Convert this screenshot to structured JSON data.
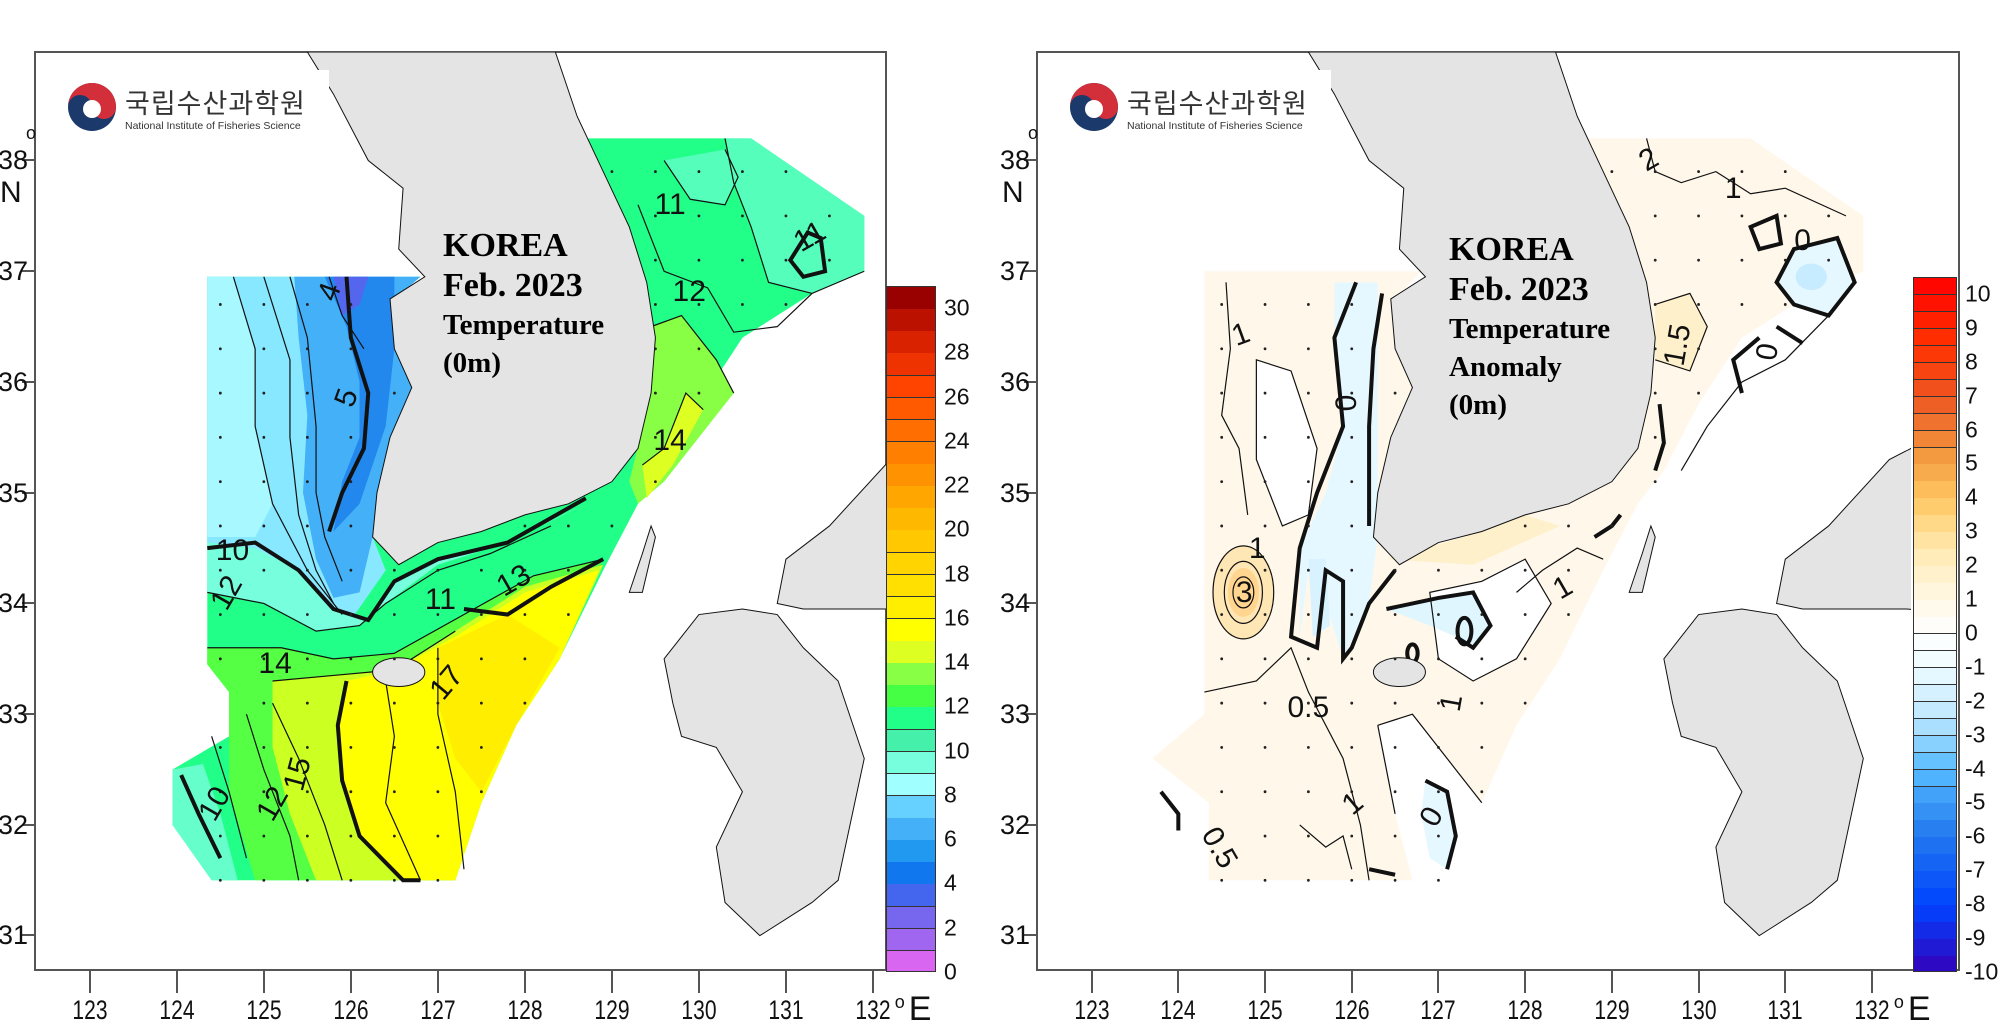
{
  "logo": {
    "korean_name": "국립수산과학원",
    "english_name": "National Institute of Fisheries Science"
  },
  "axes": {
    "lon_ticks": [
      "123",
      "124",
      "125",
      "126",
      "127",
      "128",
      "129",
      "130",
      "131",
      "132"
    ],
    "lat_ticks": [
      "31",
      "32",
      "33",
      "34",
      "35",
      "36",
      "37",
      "38"
    ],
    "degree_symbol": "o",
    "lon_unit": "E",
    "lat_unit": "N"
  },
  "panels": [
    {
      "title_lines": [
        "KOREA",
        "Feb. 2023",
        "Temperature",
        "(0m)"
      ],
      "contour_labels": [
        "4",
        "5",
        "10",
        "12",
        "14",
        "15",
        "17",
        "10",
        "12",
        "11",
        "13",
        "11",
        "11",
        "12",
        "14"
      ],
      "colorbar": {
        "labels": [
          "0",
          "2",
          "4",
          "6",
          "8",
          "10",
          "12",
          "14",
          "16",
          "18",
          "20",
          "22",
          "24",
          "26",
          "28",
          "30"
        ],
        "min": 0,
        "max": 31,
        "colors": [
          "#d966f0",
          "#a066f0",
          "#7766ee",
          "#4466ee",
          "#1177ee",
          "#2299f0",
          "#44b0f8",
          "#66d0ff",
          "#a0ffff",
          "#77ffdd",
          "#44f0aa",
          "#22ff88",
          "#44ff44",
          "#88ff44",
          "#ddff22",
          "#ffff00",
          "#ffee00",
          "#ffe000",
          "#ffd400",
          "#ffc800",
          "#ffb800",
          "#ffa600",
          "#ff9200",
          "#ff8000",
          "#ff6e00",
          "#ff5a00",
          "#ff4400",
          "#ee3300",
          "#d82200",
          "#bb1100",
          "#990000"
        ]
      }
    },
    {
      "title_lines": [
        "KOREA",
        "Feb. 2023",
        "Temperature",
        "Anomaly",
        "(0m)"
      ],
      "contour_labels": [
        "2",
        "1",
        "0",
        "1.5",
        "0",
        "1",
        "0",
        "1",
        "3",
        "0.5",
        "0.5",
        "1",
        "0",
        "1",
        "1"
      ],
      "colorbar": {
        "labels": [
          "-10",
          "-9",
          "-8",
          "-7",
          "-6",
          "-5",
          "-4",
          "-3",
          "-2",
          "-1",
          "0",
          "1",
          "2",
          "3",
          "4",
          "5",
          "6",
          "7",
          "8",
          "9",
          "10"
        ],
        "min": -10,
        "max": 10.5,
        "step": 0.5,
        "anchor_values": [
          -10,
          -8,
          -6,
          -4,
          -2.5,
          -1,
          0,
          1,
          2.5,
          4,
          5.5,
          7,
          8.5,
          10.5
        ],
        "anchor_colors": [
          "#3300bb",
          "#0044ff",
          "#2277ee",
          "#55bbff",
          "#bbe6ff",
          "#eefcff",
          "#ffffff",
          "#fff8e6",
          "#ffe9b0",
          "#ffc660",
          "#f0903a",
          "#ee5522",
          "#ff3300",
          "#ff0000"
        ]
      }
    }
  ],
  "colors": {
    "land": "#e4e4e4",
    "anomaly_base": "#fff8ea"
  }
}
